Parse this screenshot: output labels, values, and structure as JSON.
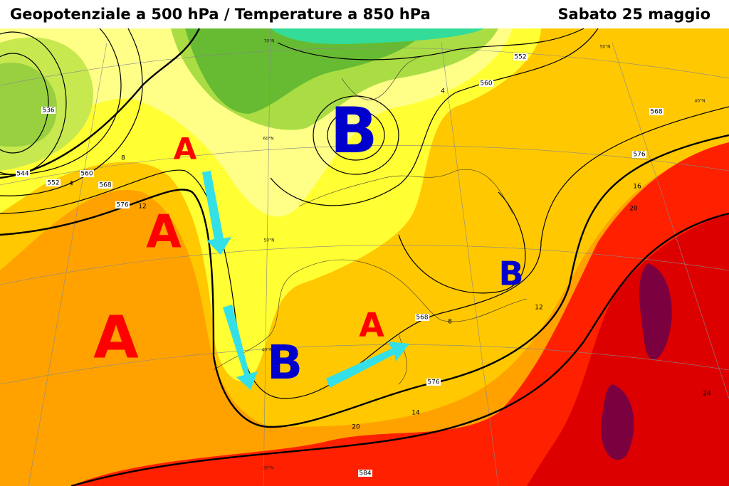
{
  "header": {
    "title": "Geopotenziale a 500 hPa / Temperature a 850 hPa",
    "date": "Sabato 25 maggio"
  },
  "pressure_centers": [
    "A",
    "A",
    "A",
    "B",
    "B",
    "A",
    "B"
  ],
  "geopotential_labels": [
    "536",
    "544",
    "552",
    "560",
    "568",
    "576",
    "552",
    "560",
    "568",
    "576",
    "568",
    "576",
    "584"
  ],
  "temperature_labels": [
    "4",
    "8",
    "12",
    "16",
    "20",
    "24",
    "4",
    "8",
    "12",
    "14",
    "20"
  ],
  "latitude_labels": [
    "70°N",
    "60°N",
    "50°N",
    "40°N",
    "30°N",
    "50°N",
    "40°N"
  ]
}
